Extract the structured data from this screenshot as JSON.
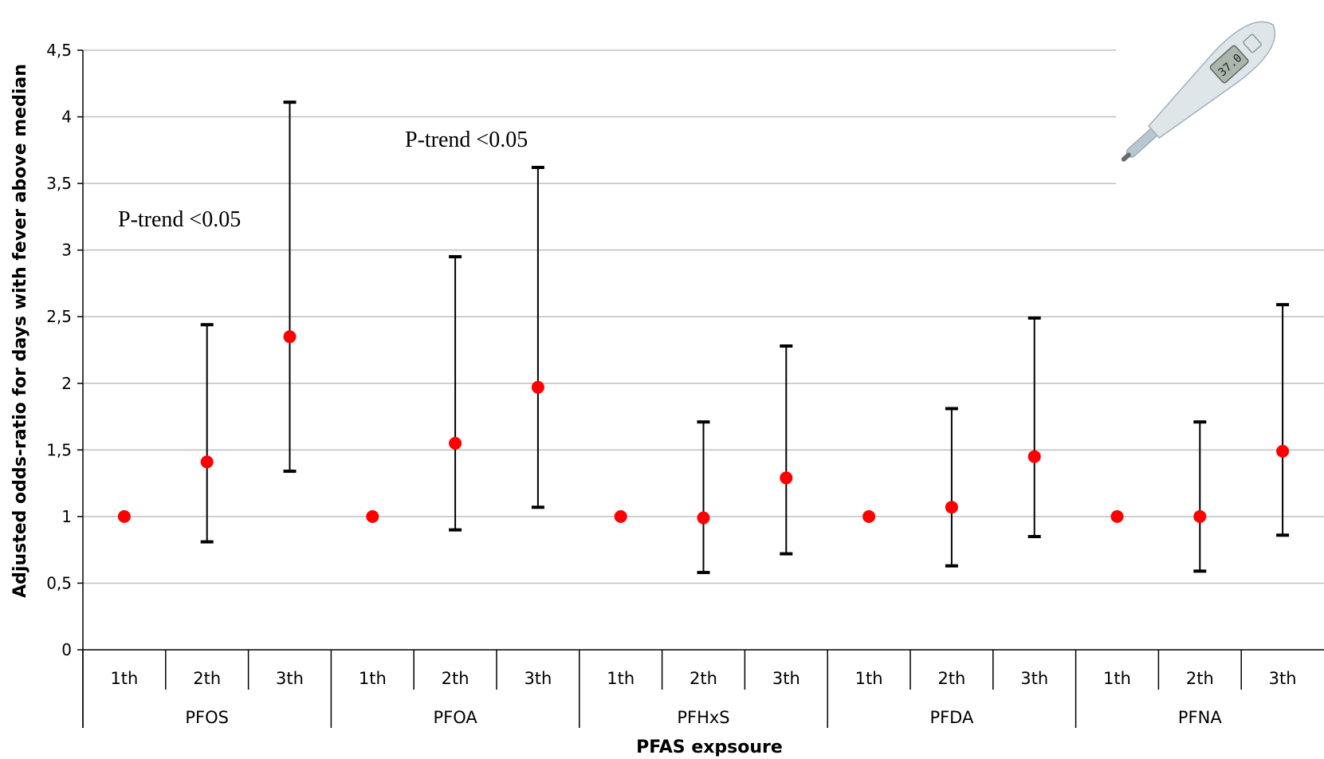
{
  "chart_data": {
    "type": "scatter",
    "title": "",
    "xlabel": "PFAS expsoure",
    "ylabel": "Adjusted odds-ratio for days with fever above median",
    "ylim": [
      0,
      4.5
    ],
    "yticks": [
      {
        "value": 0,
        "label": "0"
      },
      {
        "value": 0.5,
        "label": "0,5"
      },
      {
        "value": 1,
        "label": "1"
      },
      {
        "value": 1.5,
        "label": "1,5"
      },
      {
        "value": 2,
        "label": "2"
      },
      {
        "value": 2.5,
        "label": "2,5"
      },
      {
        "value": 3,
        "label": "3"
      },
      {
        "value": 3.5,
        "label": "3,5"
      },
      {
        "value": 4,
        "label": "4"
      },
      {
        "value": 4.5,
        "label": "4,5"
      }
    ],
    "grid": true,
    "marker_color": "#ff0000",
    "errorbar_color": "#000000",
    "grid_color": "#bfbfbf",
    "groups": [
      {
        "name": "PFOS",
        "points": [
          {
            "label": "1th",
            "value": 1.0,
            "lower": null,
            "upper": null
          },
          {
            "label": "2th",
            "value": 1.41,
            "lower": 0.81,
            "upper": 2.44
          },
          {
            "label": "3th",
            "value": 2.35,
            "lower": 1.34,
            "upper": 4.11
          }
        ]
      },
      {
        "name": "PFOA",
        "points": [
          {
            "label": "1th",
            "value": 1.0,
            "lower": null,
            "upper": null
          },
          {
            "label": "2th",
            "value": 1.55,
            "lower": 0.9,
            "upper": 2.95
          },
          {
            "label": "3th",
            "value": 1.97,
            "lower": 1.07,
            "upper": 3.62
          }
        ]
      },
      {
        "name": "PFHxS",
        "points": [
          {
            "label": "1th",
            "value": 1.0,
            "lower": null,
            "upper": null
          },
          {
            "label": "2th",
            "value": 0.99,
            "lower": 0.58,
            "upper": 1.71
          },
          {
            "label": "3th",
            "value": 1.29,
            "lower": 0.72,
            "upper": 2.28
          }
        ]
      },
      {
        "name": "PFDA",
        "points": [
          {
            "label": "1th",
            "value": 1.0,
            "lower": null,
            "upper": null
          },
          {
            "label": "2th",
            "value": 1.07,
            "lower": 0.63,
            "upper": 1.81
          },
          {
            "label": "3th",
            "value": 1.45,
            "lower": 0.85,
            "upper": 2.49
          }
        ]
      },
      {
        "name": "PFNA",
        "points": [
          {
            "label": "1th",
            "value": 1.0,
            "lower": null,
            "upper": null
          },
          {
            "label": "2th",
            "value": 1.0,
            "lower": 0.59,
            "upper": 1.71
          },
          {
            "label": "3th",
            "value": 1.49,
            "lower": 0.86,
            "upper": 2.59
          }
        ]
      }
    ],
    "annotations": [
      {
        "text": "P-trend <0.05",
        "group": "PFOS"
      },
      {
        "text": "P-trend <0.05",
        "group": "PFOA"
      }
    ],
    "thermometer": {
      "display": "37.0"
    }
  }
}
